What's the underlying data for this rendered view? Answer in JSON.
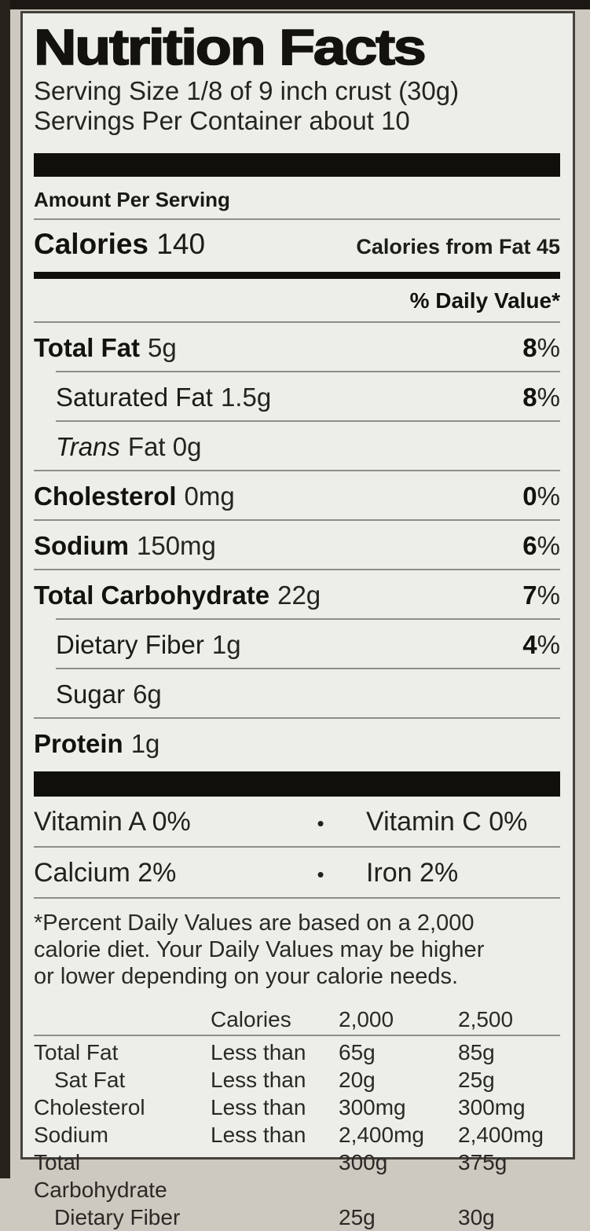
{
  "label": {
    "title": "Nutrition Facts",
    "serving_size": "Serving Size 1/8 of 9 inch crust (30g)",
    "servings_per_container": "Servings Per Container about 10",
    "amount_per_serving": "Amount Per Serving",
    "calories": {
      "label": "Calories",
      "value": "140",
      "from_fat": "Calories from Fat 45"
    },
    "daily_value_header": "% Daily Value*",
    "percent_sign": "%",
    "bullet": "•",
    "nutrients": [
      {
        "name": "Total Fat",
        "amount": "5g",
        "dv": "8"
      },
      {
        "name": "Saturated Fat",
        "amount": "1.5g",
        "dv": "8"
      },
      {
        "name": "Trans",
        "amount": "Fat 0g",
        "dv": null
      },
      {
        "name": "Cholesterol",
        "amount": "0mg",
        "dv": "0"
      },
      {
        "name": "Sodium",
        "amount": "150mg",
        "dv": "6"
      },
      {
        "name": "Total Carbohydrate",
        "amount": "22g",
        "dv": "7"
      },
      {
        "name": "Dietary Fiber",
        "amount": "1g",
        "dv": "4"
      },
      {
        "name": "Sugar",
        "amount": "6g",
        "dv": null
      },
      {
        "name": "Protein",
        "amount": "1g",
        "dv": null
      }
    ],
    "vitamins": [
      {
        "left": "Vitamin A 0%",
        "right": "Vitamin C 0%"
      },
      {
        "left": "Calcium 2%",
        "right": "Iron 2%"
      }
    ],
    "footnote_lines": [
      "*Percent Daily Values are based on a 2,000",
      "calorie diet. Your Daily Values may be higher",
      "or lower depending on your calorie needs."
    ],
    "dv_table": {
      "header": {
        "c2": "Calories",
        "c3": "2,000",
        "c4": "2,500"
      },
      "rows": [
        {
          "name": "Total Fat",
          "q": "Less than",
          "v1": "65g",
          "v2": "85g"
        },
        {
          "name": "Sat Fat",
          "q": "Less than",
          "v1": "20g",
          "v2": "25g"
        },
        {
          "name": "Cholesterol",
          "q": "Less than",
          "v1": "300mg",
          "v2": "300mg"
        },
        {
          "name": "Sodium",
          "q": "Less than",
          "v1": "2,400mg",
          "v2": "2,400mg"
        },
        {
          "name": "Total Carbohydrate",
          "q": "",
          "v1": "300g",
          "v2": "375g"
        },
        {
          "name": "Dietary Fiber",
          "q": "",
          "v1": "25g",
          "v2": "30g"
        }
      ]
    }
  }
}
